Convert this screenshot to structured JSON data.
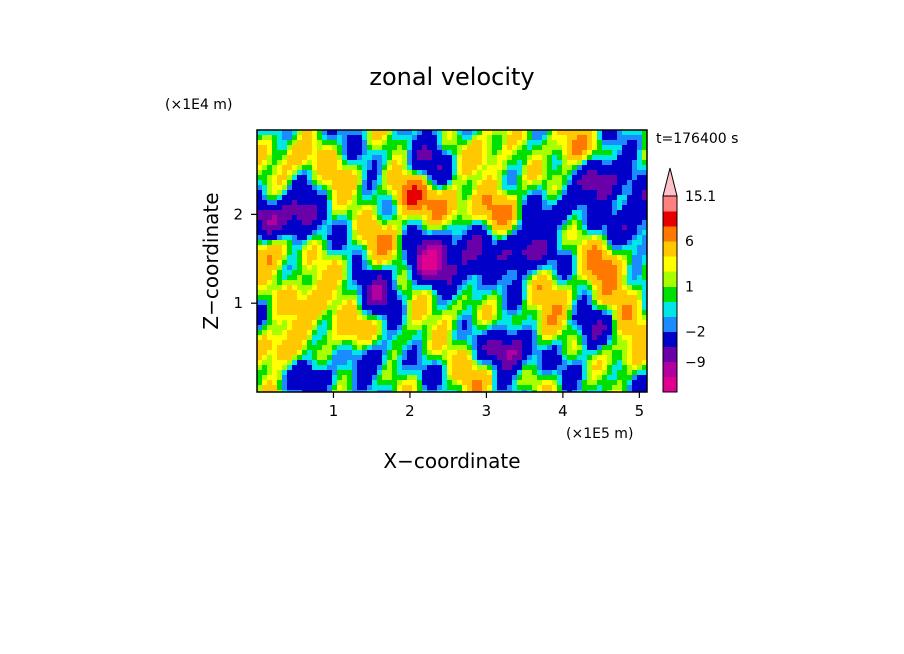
{
  "chart_data": {
    "type": "heatmap",
    "title": "zonal velocity",
    "xlabel": "X−coordinate",
    "ylabel": "Z−coordinate",
    "x_multiplier": "(×1E5 m)",
    "y_multiplier": "(×1E4 m)",
    "time_label": "t=176400 s",
    "xlim": [
      0,
      5.1
    ],
    "ylim": [
      0,
      2.95
    ],
    "x_ticks": [
      1,
      2,
      3,
      4,
      5
    ],
    "x_tick_labels": [
      "1",
      "2",
      "3",
      "4",
      "5"
    ],
    "y_ticks": [
      1,
      2
    ],
    "y_tick_labels": [
      "1",
      "2"
    ],
    "colorbar": {
      "levels": [
        -15.1,
        -12,
        -9,
        -6,
        -2,
        -1,
        0,
        1,
        2,
        3,
        6,
        9,
        12,
        15.1
      ],
      "tick_labels": [
        "15.1",
        "6",
        "1",
        "−2",
        "−9"
      ],
      "tick_values": [
        15.1,
        6,
        1,
        -2,
        -9
      ],
      "extend": "max",
      "colors": [
        "#e00090",
        "#b000a0",
        "#6a00a8",
        "#0000c8",
        "#1a8cff",
        "#00e5e5",
        "#00e000",
        "#a8ff00",
        "#ffff00",
        "#ffc800",
        "#ff7800",
        "#e60000",
        "#ff8080",
        "#ffc0c8"
      ]
    },
    "blobs": [
      {
        "x": 0.55,
        "z": 2.05,
        "v": -10
      },
      {
        "x": 0.1,
        "z": 1.9,
        "v": -6
      },
      {
        "x": 1.6,
        "z": 1.2,
        "v": -8
      },
      {
        "x": 2.3,
        "z": 1.55,
        "v": -12
      },
      {
        "x": 2.8,
        "z": 1.5,
        "v": -7
      },
      {
        "x": 3.5,
        "z": 1.6,
        "v": -9
      },
      {
        "x": 3.3,
        "z": 0.5,
        "v": -10
      },
      {
        "x": 4.5,
        "z": 2.4,
        "v": -9
      },
      {
        "x": 4.95,
        "z": 2.0,
        "v": -7
      },
      {
        "x": 2.3,
        "z": 2.65,
        "v": -5
      },
      {
        "x": 0.8,
        "z": 0.25,
        "v": -5
      },
      {
        "x": 4.35,
        "z": 0.7,
        "v": -5
      },
      {
        "x": 1.5,
        "z": 0.45,
        "v": -4
      },
      {
        "x": 3.95,
        "z": 2.1,
        "v": -4
      },
      {
        "x": 0.2,
        "z": 1.6,
        "v": 6
      },
      {
        "x": 0.75,
        "z": 1.1,
        "v": 7
      },
      {
        "x": 2.0,
        "z": 2.2,
        "v": 7
      },
      {
        "x": 2.5,
        "z": 2.1,
        "v": 6
      },
      {
        "x": 1.6,
        "z": 1.6,
        "v": 6
      },
      {
        "x": 0.5,
        "z": 2.6,
        "v": 5
      },
      {
        "x": 3.2,
        "z": 2.1,
        "v": 6
      },
      {
        "x": 4.5,
        "z": 1.4,
        "v": 7
      },
      {
        "x": 3.8,
        "z": 0.85,
        "v": 5
      },
      {
        "x": 0.3,
        "z": 0.55,
        "v": 6
      },
      {
        "x": 1.2,
        "z": 0.65,
        "v": 6
      },
      {
        "x": 3.0,
        "z": 2.75,
        "v": 5
      },
      {
        "x": 4.1,
        "z": 2.7,
        "v": 6
      },
      {
        "x": 4.85,
        "z": 0.55,
        "v": 5
      },
      {
        "x": 2.9,
        "z": 0.15,
        "v": 5
      },
      {
        "x": 1.0,
        "z": 2.3,
        "v": 4
      },
      {
        "x": 2.6,
        "z": 0.8,
        "v": 2
      },
      {
        "x": 2.0,
        "z": 0.85,
        "v": 2
      },
      {
        "x": 3.7,
        "z": 1.15,
        "v": 2
      },
      {
        "x": 4.8,
        "z": 1.1,
        "v": 3
      }
    ]
  }
}
